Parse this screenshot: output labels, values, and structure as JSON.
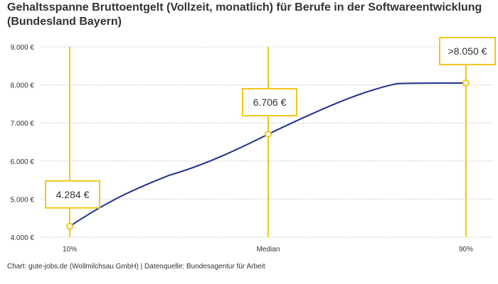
{
  "chart_data": {
    "type": "line",
    "title": "Gehaltsspanne Bruttoentgelt (Vollzeit, monatlich) für Berufe in der Softwareentwicklung (Bundesland Bayern)",
    "categories": [
      "10%",
      "Median",
      "90%"
    ],
    "values": [
      4284,
      6706,
      8050
    ],
    "data_labels": [
      "4.284 €",
      "6.706 €",
      ">8.050 €"
    ],
    "ylim": [
      4000,
      9000
    ],
    "yticks": [
      4000,
      5000,
      6000,
      7000,
      8000,
      9000
    ],
    "ytick_labels": [
      "4.000 €",
      "5.000 €",
      "6.000 €",
      "7.000 €",
      "8.000 €",
      "9.000 €"
    ],
    "grid": "horizontal dashed",
    "xlabel": "",
    "ylabel": ""
  },
  "source": "Chart: gute-jobs.de (Wollmilchsau GmbH) | Datenquelle: Bundesagentur für Arbeit",
  "colors": {
    "line": "#1f2f8c",
    "marker": "#f5c518",
    "grid": "#c8c8c8",
    "text": "#333333"
  }
}
